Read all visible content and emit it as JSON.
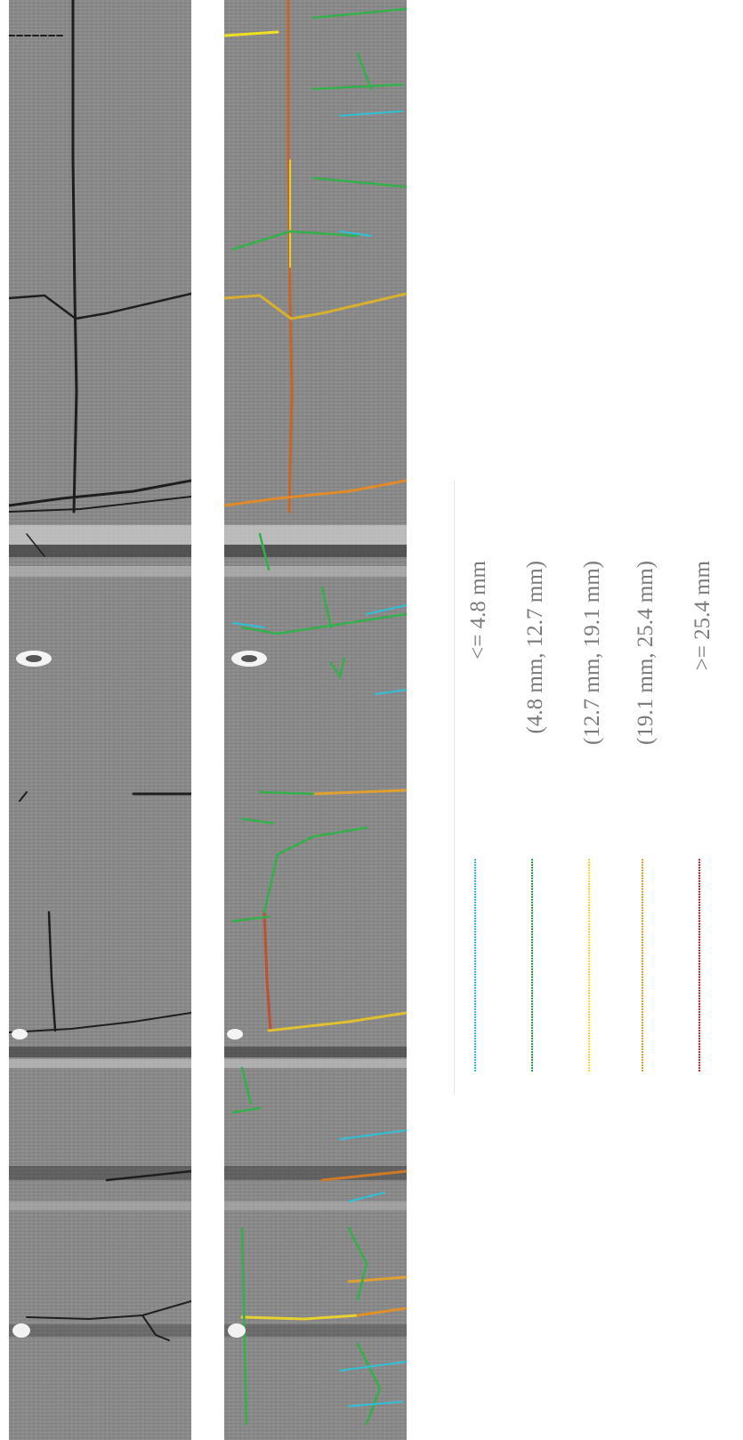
{
  "legend": {
    "items": [
      {
        "label": "<= 4.8 mm",
        "color": "#22c8e0"
      },
      {
        "label": "(4.8 mm, 12.7 mm)",
        "color": "#22a83a"
      },
      {
        "label": "(12.7 mm, 19.1 mm)",
        "color": "#f0e020"
      },
      {
        "label": "(19.1 mm, 25.4 mm)",
        "color": "#f0a020"
      },
      {
        "label": ">= 25.4 mm",
        "color": "#e02020"
      }
    ]
  }
}
